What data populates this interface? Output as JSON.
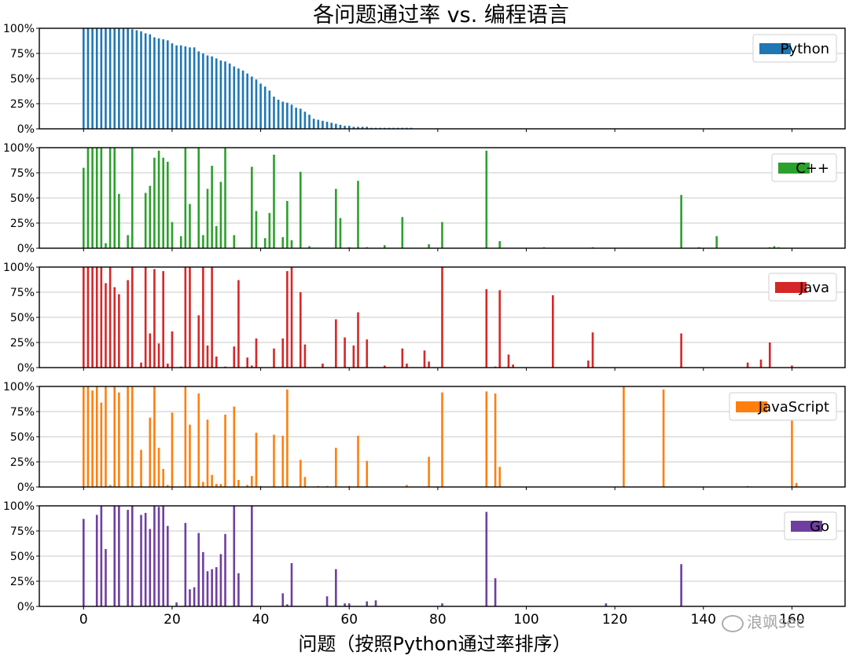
{
  "title": "各问题通过率 vs. 编程语言",
  "watermark": "浪飒sec",
  "chart_data": {
    "type": "bar",
    "title": "各问题通过率 vs. 编程语言",
    "xlabel": "问题（按照Python通过率排序）",
    "ylabel": "",
    "xlim": [
      -10,
      172
    ],
    "ylim": [
      0,
      1
    ],
    "x_ticks": [
      0,
      20,
      40,
      60,
      80,
      100,
      120,
      140,
      160
    ],
    "y_ticks": [
      "0%",
      "25%",
      "50%",
      "75%",
      "100%"
    ],
    "grid": "horizontal",
    "legend_position": "top-right",
    "subplots": [
      {
        "name": "Python",
        "color": "#1f77b4",
        "x": [
          0,
          1,
          2,
          3,
          4,
          5,
          6,
          7,
          8,
          9,
          10,
          11,
          12,
          13,
          14,
          15,
          16,
          17,
          18,
          19,
          20,
          21,
          22,
          23,
          24,
          25,
          26,
          27,
          28,
          29,
          30,
          31,
          32,
          33,
          34,
          35,
          36,
          37,
          38,
          39,
          40,
          41,
          42,
          43,
          44,
          45,
          46,
          47,
          48,
          49,
          50,
          51,
          52,
          53,
          54,
          55,
          56,
          57,
          58,
          59,
          60,
          61,
          62,
          63,
          64,
          65,
          66,
          67,
          68,
          69,
          70,
          71,
          72,
          73,
          74
        ],
        "values": [
          1.0,
          1.0,
          1.0,
          1.0,
          1.0,
          1.0,
          1.0,
          1.0,
          1.0,
          1.0,
          1.0,
          0.99,
          0.98,
          0.97,
          0.95,
          0.94,
          0.91,
          0.9,
          0.89,
          0.88,
          0.85,
          0.83,
          0.83,
          0.82,
          0.81,
          0.81,
          0.77,
          0.75,
          0.73,
          0.72,
          0.7,
          0.68,
          0.67,
          0.65,
          0.62,
          0.6,
          0.58,
          0.55,
          0.52,
          0.49,
          0.45,
          0.42,
          0.38,
          0.32,
          0.29,
          0.27,
          0.26,
          0.24,
          0.21,
          0.2,
          0.17,
          0.14,
          0.1,
          0.09,
          0.08,
          0.07,
          0.06,
          0.05,
          0.04,
          0.03,
          0.03,
          0.02,
          0.02,
          0.02,
          0.02,
          0.01,
          0.01,
          0.01,
          0.01,
          0.01,
          0.01,
          0.01,
          0.01,
          0.01,
          0.01
        ]
      },
      {
        "name": "C++",
        "color": "#2ca02c",
        "x": [
          0,
          1,
          2,
          3,
          4,
          5,
          6,
          7,
          8,
          10,
          11,
          14,
          15,
          16,
          17,
          18,
          19,
          20,
          22,
          23,
          24,
          26,
          27,
          28,
          29,
          30,
          31,
          32,
          34,
          38,
          39,
          41,
          42,
          43,
          45,
          46,
          47,
          49,
          51,
          57,
          58,
          60,
          62,
          64,
          68,
          72,
          78,
          81,
          91,
          94,
          104,
          115,
          135,
          139,
          143,
          155,
          156,
          157
        ],
        "values": [
          0.8,
          1.0,
          1.0,
          1.0,
          1.0,
          0.05,
          1.0,
          1.0,
          0.54,
          0.13,
          1.0,
          0.55,
          0.62,
          0.9,
          0.97,
          0.9,
          0.86,
          0.26,
          0.12,
          1.0,
          0.44,
          1.0,
          0.13,
          0.59,
          0.82,
          0.22,
          0.66,
          1.0,
          0.13,
          0.81,
          0.37,
          0.1,
          0.35,
          0.93,
          0.11,
          0.47,
          0.08,
          0.76,
          0.02,
          0.59,
          0.3,
          0.01,
          0.67,
          0.01,
          0.03,
          0.31,
          0.04,
          0.26,
          0.97,
          0.07,
          0.01,
          0.01,
          0.53,
          0.01,
          0.12,
          0.01,
          0.02,
          0.01
        ]
      },
      {
        "name": "Java",
        "color": "#d62728",
        "x": [
          0,
          1,
          2,
          3,
          4,
          5,
          6,
          7,
          8,
          10,
          11,
          13,
          14,
          15,
          16,
          17,
          18,
          19,
          20,
          22,
          23,
          24,
          26,
          27,
          28,
          29,
          30,
          32,
          34,
          35,
          37,
          38,
          39,
          43,
          45,
          46,
          47,
          49,
          50,
          54,
          57,
          59,
          61,
          62,
          64,
          68,
          72,
          73,
          77,
          78,
          81,
          91,
          93,
          94,
          96,
          97,
          106,
          114,
          115,
          135,
          150,
          153,
          155,
          160
        ],
        "values": [
          1.0,
          1.0,
          1.0,
          1.0,
          1.0,
          0.84,
          1.0,
          0.8,
          0.73,
          0.87,
          1.0,
          0.05,
          1.0,
          0.34,
          0.98,
          0.24,
          0.96,
          0.04,
          0.36,
          0.01,
          1.0,
          1.0,
          0.52,
          1.0,
          0.22,
          1.0,
          0.11,
          0.01,
          0.21,
          0.87,
          0.1,
          0.02,
          0.29,
          0.19,
          0.29,
          0.96,
          1.0,
          0.75,
          0.23,
          0.04,
          0.48,
          0.3,
          0.22,
          0.55,
          0.28,
          0.02,
          0.19,
          0.04,
          0.17,
          0.06,
          1.0,
          0.78,
          0.01,
          0.77,
          0.13,
          0.03,
          0.72,
          0.07,
          0.35,
          0.34,
          0.05,
          0.08,
          0.25,
          0.02
        ]
      },
      {
        "name": "JavaScript",
        "color": "#ff7f0e",
        "x": [
          0,
          1,
          2,
          3,
          4,
          5,
          6,
          7,
          8,
          10,
          11,
          13,
          15,
          16,
          17,
          18,
          19,
          20,
          23,
          24,
          26,
          27,
          28,
          29,
          30,
          31,
          32,
          34,
          35,
          37,
          38,
          39,
          40,
          43,
          45,
          46,
          49,
          50,
          53,
          55,
          57,
          60,
          62,
          64,
          73,
          78,
          81,
          91,
          93,
          94,
          122,
          131,
          150,
          160,
          161
        ],
        "values": [
          1.0,
          1.0,
          0.96,
          1.0,
          0.84,
          1.0,
          0.02,
          1.0,
          0.94,
          1.0,
          1.0,
          0.37,
          0.69,
          1.0,
          0.39,
          0.18,
          0.02,
          0.74,
          1.0,
          0.62,
          0.93,
          0.05,
          0.67,
          0.12,
          0.03,
          0.03,
          0.72,
          0.8,
          0.07,
          0.02,
          0.11,
          0.54,
          0.01,
          0.52,
          0.51,
          0.97,
          0.27,
          0.1,
          0.01,
          0.01,
          0.39,
          0.01,
          0.51,
          0.26,
          0.02,
          0.3,
          0.94,
          0.95,
          0.93,
          0.2,
          1.0,
          0.97,
          0.01,
          0.66,
          0.04
        ]
      },
      {
        "name": "Go",
        "color": "#6f3fa0",
        "x": [
          0,
          3,
          4,
          5,
          7,
          8,
          10,
          11,
          13,
          14,
          15,
          16,
          17,
          18,
          19,
          21,
          23,
          24,
          25,
          26,
          27,
          28,
          29,
          30,
          31,
          32,
          34,
          35,
          38,
          45,
          46,
          47,
          55,
          57,
          59,
          60,
          64,
          66,
          81,
          91,
          93,
          118,
          135
        ],
        "values": [
          0.87,
          0.91,
          1.0,
          0.57,
          1.0,
          1.0,
          0.96,
          1.0,
          0.91,
          0.93,
          0.77,
          1.0,
          0.99,
          1.0,
          0.8,
          0.04,
          0.83,
          0.17,
          0.19,
          0.73,
          0.54,
          0.35,
          0.37,
          0.39,
          0.52,
          0.72,
          1.0,
          0.33,
          1.0,
          0.13,
          0.02,
          0.43,
          0.1,
          0.37,
          0.03,
          0.03,
          0.05,
          0.06,
          0.03,
          0.94,
          0.28,
          0.03,
          0.42
        ]
      }
    ]
  }
}
